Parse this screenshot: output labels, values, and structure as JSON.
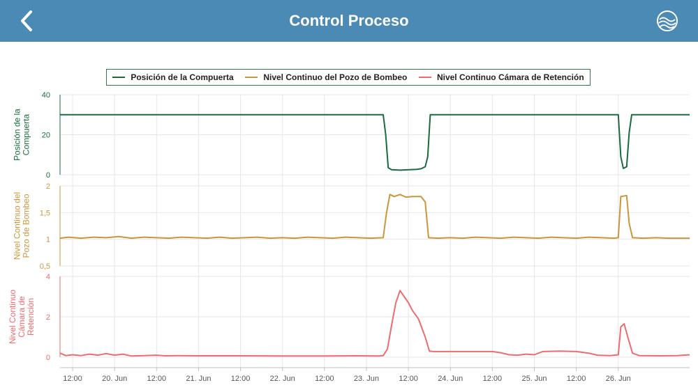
{
  "header": {
    "title": "Control Proceso",
    "back_icon": "chevron-left-icon",
    "logo_icon": "water-waves-icon"
  },
  "legend": {
    "items": [
      {
        "label": "Posición de la Compuerta",
        "color": "#1a6b3c"
      },
      {
        "label": "Nivel Continuo del Pozo de Bombeo",
        "color": "#c9963a"
      },
      {
        "label": "Nivel Continuo Cámara de Retención",
        "color": "#ee6b6e"
      }
    ]
  },
  "chart_data": {
    "type": "line",
    "x_unit": "day",
    "x_range": [
      19.35,
      26.85
    ],
    "x_ticks": [
      {
        "x": 19.5,
        "label": "12:00"
      },
      {
        "x": 20.0,
        "label": "20. Jun"
      },
      {
        "x": 20.5,
        "label": "12:00"
      },
      {
        "x": 21.0,
        "label": "21. Jun"
      },
      {
        "x": 21.5,
        "label": "12:00"
      },
      {
        "x": 22.0,
        "label": "22. Jun"
      },
      {
        "x": 22.5,
        "label": "12:00"
      },
      {
        "x": 23.0,
        "label": "23. Jun"
      },
      {
        "x": 23.5,
        "label": "12:00"
      },
      {
        "x": 24.0,
        "label": "24. Jun"
      },
      {
        "x": 24.5,
        "label": "12:00"
      },
      {
        "x": 25.0,
        "label": "25. Jun"
      },
      {
        "x": 25.5,
        "label": "12:00"
      },
      {
        "x": 26.0,
        "label": "26. Jun"
      }
    ],
    "series": [
      {
        "name": "Posición de la Compuerta",
        "ylabel": [
          "Posición de la",
          "Compuerta"
        ],
        "color": "#1a6b3c",
        "ylim": [
          0,
          40
        ],
        "ticks": [
          {
            "v": 0,
            "label": "0"
          },
          {
            "v": 20,
            "label": "20"
          },
          {
            "v": 40,
            "label": "40"
          }
        ],
        "points": [
          [
            19.35,
            30
          ],
          [
            23.2,
            30
          ],
          [
            23.23,
            20
          ],
          [
            23.26,
            3.5
          ],
          [
            23.3,
            2.5
          ],
          [
            23.4,
            2.3
          ],
          [
            23.6,
            2.7
          ],
          [
            23.65,
            3.0
          ],
          [
            23.7,
            4.0
          ],
          [
            23.73,
            9
          ],
          [
            23.76,
            30
          ],
          [
            26.0,
            30
          ],
          [
            26.03,
            9
          ],
          [
            26.06,
            3.2
          ],
          [
            26.1,
            4.0
          ],
          [
            26.13,
            21
          ],
          [
            26.16,
            30
          ],
          [
            26.85,
            30
          ]
        ]
      },
      {
        "name": "Nivel Continuo del Pozo de Bombeo",
        "ylabel": [
          "Nivel Continuo del",
          "Pozo de Bombeo"
        ],
        "color": "#c9963a",
        "ylim": [
          0.5,
          2
        ],
        "ticks": [
          {
            "v": 0.5,
            "label": "0,5"
          },
          {
            "v": 1,
            "label": "1"
          },
          {
            "v": 1.5,
            "label": "1,5"
          },
          {
            "v": 2,
            "label": "2"
          }
        ],
        "points": [
          [
            19.35,
            1.02
          ],
          [
            19.45,
            1.04
          ],
          [
            19.6,
            1.02
          ],
          [
            19.75,
            1.04
          ],
          [
            19.9,
            1.03
          ],
          [
            20.05,
            1.05
          ],
          [
            20.2,
            1.02
          ],
          [
            20.35,
            1.04
          ],
          [
            20.5,
            1.03
          ],
          [
            20.65,
            1.02
          ],
          [
            20.8,
            1.04
          ],
          [
            20.95,
            1.03
          ],
          [
            21.1,
            1.02
          ],
          [
            21.25,
            1.04
          ],
          [
            21.4,
            1.02
          ],
          [
            21.55,
            1.03
          ],
          [
            21.7,
            1.04
          ],
          [
            21.85,
            1.02
          ],
          [
            22.0,
            1.03
          ],
          [
            22.15,
            1.02
          ],
          [
            22.3,
            1.04
          ],
          [
            22.45,
            1.03
          ],
          [
            22.6,
            1.02
          ],
          [
            22.75,
            1.04
          ],
          [
            22.9,
            1.03
          ],
          [
            23.05,
            1.02
          ],
          [
            23.2,
            1.03
          ],
          [
            23.24,
            1.5
          ],
          [
            23.28,
            1.84
          ],
          [
            23.33,
            1.8
          ],
          [
            23.4,
            1.84
          ],
          [
            23.47,
            1.79
          ],
          [
            23.55,
            1.8
          ],
          [
            23.65,
            1.8
          ],
          [
            23.7,
            1.7
          ],
          [
            23.74,
            1.03
          ],
          [
            23.85,
            1.02
          ],
          [
            24.0,
            1.03
          ],
          [
            24.15,
            1.02
          ],
          [
            24.3,
            1.04
          ],
          [
            24.45,
            1.03
          ],
          [
            24.6,
            1.02
          ],
          [
            24.75,
            1.04
          ],
          [
            24.9,
            1.03
          ],
          [
            25.05,
            1.02
          ],
          [
            25.2,
            1.04
          ],
          [
            25.35,
            1.03
          ],
          [
            25.5,
            1.02
          ],
          [
            25.65,
            1.04
          ],
          [
            25.8,
            1.03
          ],
          [
            25.95,
            1.02
          ],
          [
            26.0,
            1.03
          ],
          [
            26.03,
            1.8
          ],
          [
            26.1,
            1.82
          ],
          [
            26.13,
            1.3
          ],
          [
            26.17,
            1.03
          ],
          [
            26.3,
            1.02
          ],
          [
            26.45,
            1.03
          ],
          [
            26.6,
            1.02
          ],
          [
            26.85,
            1.02
          ]
        ]
      },
      {
        "name": "Nivel Continuo Cámara de Retención",
        "ylabel": [
          "Nivel Continuo",
          "Cámara de",
          "Retención"
        ],
        "color": "#ee6b6e",
        "ylim": [
          0,
          4
        ],
        "ticks": [
          {
            "v": 0,
            "label": "0"
          },
          {
            "v": 2,
            "label": "2"
          },
          {
            "v": 4,
            "label": "4"
          }
        ],
        "points": [
          [
            19.35,
            0.2
          ],
          [
            19.42,
            0.08
          ],
          [
            19.5,
            0.12
          ],
          [
            19.6,
            0.08
          ],
          [
            19.7,
            0.15
          ],
          [
            19.8,
            0.1
          ],
          [
            19.9,
            0.18
          ],
          [
            20.0,
            0.1
          ],
          [
            20.1,
            0.15
          ],
          [
            20.2,
            0.06
          ],
          [
            20.35,
            0.08
          ],
          [
            20.5,
            0.1
          ],
          [
            20.6,
            0.07
          ],
          [
            20.75,
            0.08
          ],
          [
            21.0,
            0.07
          ],
          [
            21.5,
            0.07
          ],
          [
            22.0,
            0.06
          ],
          [
            22.5,
            0.06
          ],
          [
            22.9,
            0.07
          ],
          [
            23.15,
            0.06
          ],
          [
            23.2,
            0.08
          ],
          [
            23.25,
            0.4
          ],
          [
            23.3,
            1.6
          ],
          [
            23.35,
            2.7
          ],
          [
            23.4,
            3.3
          ],
          [
            23.45,
            3.0
          ],
          [
            23.5,
            2.7
          ],
          [
            23.55,
            2.3
          ],
          [
            23.62,
            1.9
          ],
          [
            23.7,
            1.0
          ],
          [
            23.75,
            0.3
          ],
          [
            23.8,
            0.28
          ],
          [
            24.0,
            0.28
          ],
          [
            24.3,
            0.28
          ],
          [
            24.5,
            0.28
          ],
          [
            24.6,
            0.22
          ],
          [
            24.7,
            0.12
          ],
          [
            24.8,
            0.1
          ],
          [
            24.9,
            0.15
          ],
          [
            25.0,
            0.12
          ],
          [
            25.1,
            0.28
          ],
          [
            25.3,
            0.3
          ],
          [
            25.5,
            0.28
          ],
          [
            25.65,
            0.2
          ],
          [
            25.75,
            0.1
          ],
          [
            25.9,
            0.08
          ],
          [
            26.0,
            0.12
          ],
          [
            26.03,
            1.5
          ],
          [
            26.07,
            1.65
          ],
          [
            26.12,
            0.9
          ],
          [
            26.17,
            0.2
          ],
          [
            26.25,
            0.08
          ],
          [
            26.5,
            0.07
          ],
          [
            26.7,
            0.08
          ],
          [
            26.85,
            0.12
          ]
        ]
      }
    ]
  }
}
